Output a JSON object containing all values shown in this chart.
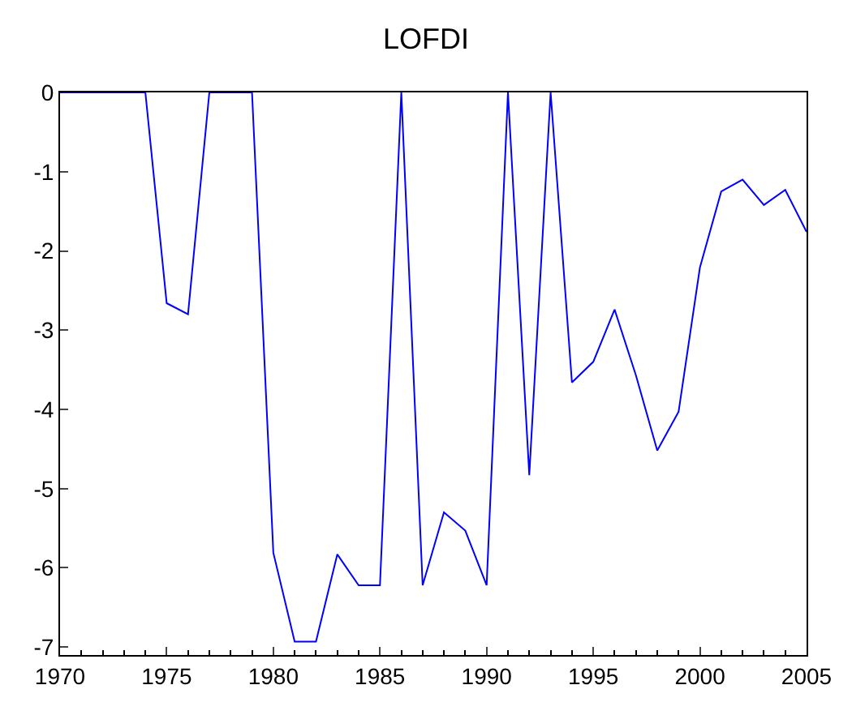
{
  "chart_data": {
    "type": "line",
    "title": "LOFDI",
    "x": [
      1970,
      1971,
      1972,
      1973,
      1974,
      1975,
      1976,
      1977,
      1978,
      1979,
      1980,
      1981,
      1982,
      1983,
      1984,
      1985,
      1986,
      1987,
      1988,
      1989,
      1990,
      1991,
      1992,
      1993,
      1994,
      1995,
      1996,
      1997,
      1998,
      1999,
      2000,
      2001,
      2002,
      2003,
      2004,
      2005
    ],
    "series": [
      {
        "color": "#0000ff",
        "values": [
          0,
          0,
          0,
          0,
          0,
          -2.66,
          -2.8,
          0,
          0,
          0,
          -5.81,
          -6.93,
          -6.93,
          -5.83,
          -6.22,
          -6.22,
          0,
          -6.22,
          -5.3,
          -5.53,
          -6.22,
          0,
          -4.83,
          0,
          -3.66,
          -3.4,
          -2.74,
          -3.57,
          -4.52,
          -4.03,
          -2.21,
          -1.25,
          -1.1,
          -1.42,
          -1.23,
          -1.76
        ]
      }
    ],
    "xlim": [
      1970,
      2005
    ],
    "xticks": [
      1970,
      1975,
      1980,
      1985,
      1990,
      1995,
      2000,
      2005
    ],
    "ylim": [
      -7.1,
      0
    ],
    "yticks": [
      0,
      -1,
      -2,
      -3,
      -4,
      -5,
      -6,
      -7
    ],
    "legend": false,
    "marker": "none",
    "line_style": "solid"
  }
}
